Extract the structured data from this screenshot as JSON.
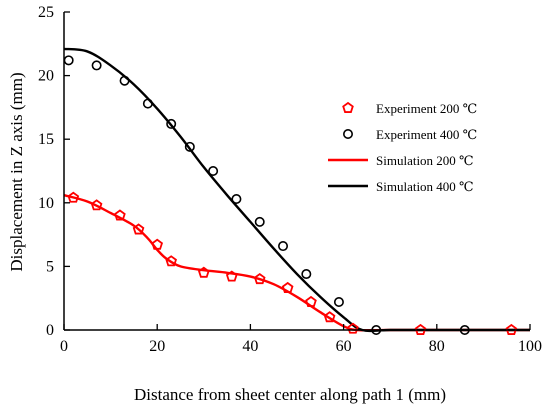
{
  "chart_data": {
    "type": "line",
    "title": "",
    "xlabel": "Distance from sheet center along path 1 (mm)",
    "ylabel": "Displacement in Z axis (mm)",
    "xlim": [
      0,
      100
    ],
    "ylim": [
      0,
      25
    ],
    "xticks": [
      0,
      20,
      40,
      60,
      80,
      100
    ],
    "yticks": [
      0,
      5,
      10,
      15,
      20,
      25
    ],
    "grid": false,
    "legend_position": "right",
    "series": [
      {
        "name": "Experiment 200 ℃",
        "kind": "scatter",
        "marker": "pentagon",
        "color": "#ff0000",
        "x": [
          2,
          7,
          12,
          16,
          20,
          23,
          30,
          36,
          42,
          48,
          53,
          57,
          62,
          76.5,
          96
        ],
        "y": [
          10.4,
          9.8,
          9.0,
          7.9,
          6.7,
          5.4,
          4.5,
          4.2,
          4.0,
          3.3,
          2.2,
          1.0,
          0.1,
          0.0,
          0.0
        ]
      },
      {
        "name": "Experiment 400 ℃",
        "kind": "scatter",
        "marker": "circle",
        "color": "#000000",
        "x": [
          1,
          7,
          13,
          18,
          23,
          27,
          32,
          37,
          42,
          47,
          52,
          59,
          67,
          86
        ],
        "y": [
          21.2,
          20.8,
          19.6,
          17.8,
          16.2,
          14.4,
          12.5,
          10.3,
          8.5,
          6.6,
          4.4,
          2.2,
          0.0,
          0.0
        ]
      },
      {
        "name": "Simulation 200 ℃",
        "kind": "line",
        "color": "#ff0000",
        "x": [
          0,
          5,
          10,
          15,
          18,
          20,
          22,
          25,
          30,
          35,
          40,
          45,
          50,
          55,
          60,
          63,
          70,
          80,
          90,
          100
        ],
        "y": [
          10.6,
          10.1,
          9.2,
          8.2,
          7.2,
          6.3,
          5.6,
          5.0,
          4.7,
          4.5,
          4.2,
          3.6,
          2.6,
          1.4,
          0.3,
          0.0,
          0.0,
          0.0,
          0.0,
          0.0
        ]
      },
      {
        "name": "Simulation 400 ℃",
        "kind": "line",
        "color": "#000000",
        "x": [
          0,
          5,
          10,
          15,
          20,
          25,
          30,
          35,
          40,
          45,
          50,
          55,
          60,
          64,
          70,
          80,
          90,
          100
        ],
        "y": [
          22.1,
          21.9,
          20.8,
          19.3,
          17.4,
          15.2,
          12.8,
          10.6,
          8.5,
          6.4,
          4.4,
          2.6,
          1.0,
          0.0,
          0.0,
          0.0,
          0.0,
          0.0
        ]
      }
    ]
  }
}
